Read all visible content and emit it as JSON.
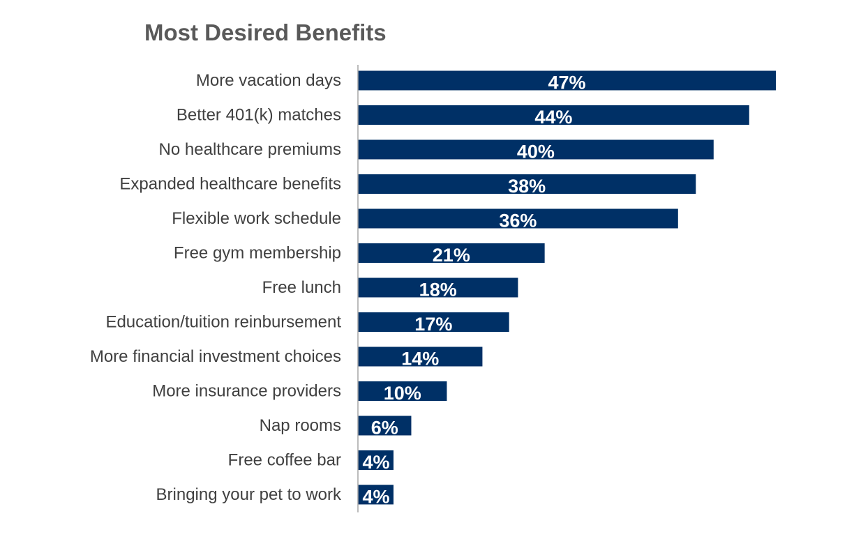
{
  "chart_data": {
    "type": "bar",
    "orientation": "horizontal",
    "title": "Most Desired Benefits",
    "xlabel": "",
    "ylabel": "",
    "categories": [
      "More vacation days",
      "Better 401(k) matches",
      "No healthcare premiums",
      "Expanded healthcare benefits",
      "Flexible work schedule",
      "Free gym membership",
      "Free lunch",
      "Education/tuition reinbursement",
      "More financial investment choices",
      "More insurance providers",
      "Nap rooms",
      "Free coffee bar",
      "Bringing your pet to work"
    ],
    "values": [
      47,
      44,
      40,
      38,
      36,
      21,
      18,
      17,
      14,
      10,
      6,
      4,
      4
    ],
    "value_labels": [
      "47%",
      "44%",
      "40%",
      "38%",
      "36%",
      "21%",
      "18%",
      "17%",
      "14%",
      "10%",
      "6%",
      "4%",
      "4%"
    ],
    "value_unit": "%",
    "grid": false,
    "legend": "none",
    "bar_color": "#003066",
    "axis_color": "#a6a6a6"
  }
}
